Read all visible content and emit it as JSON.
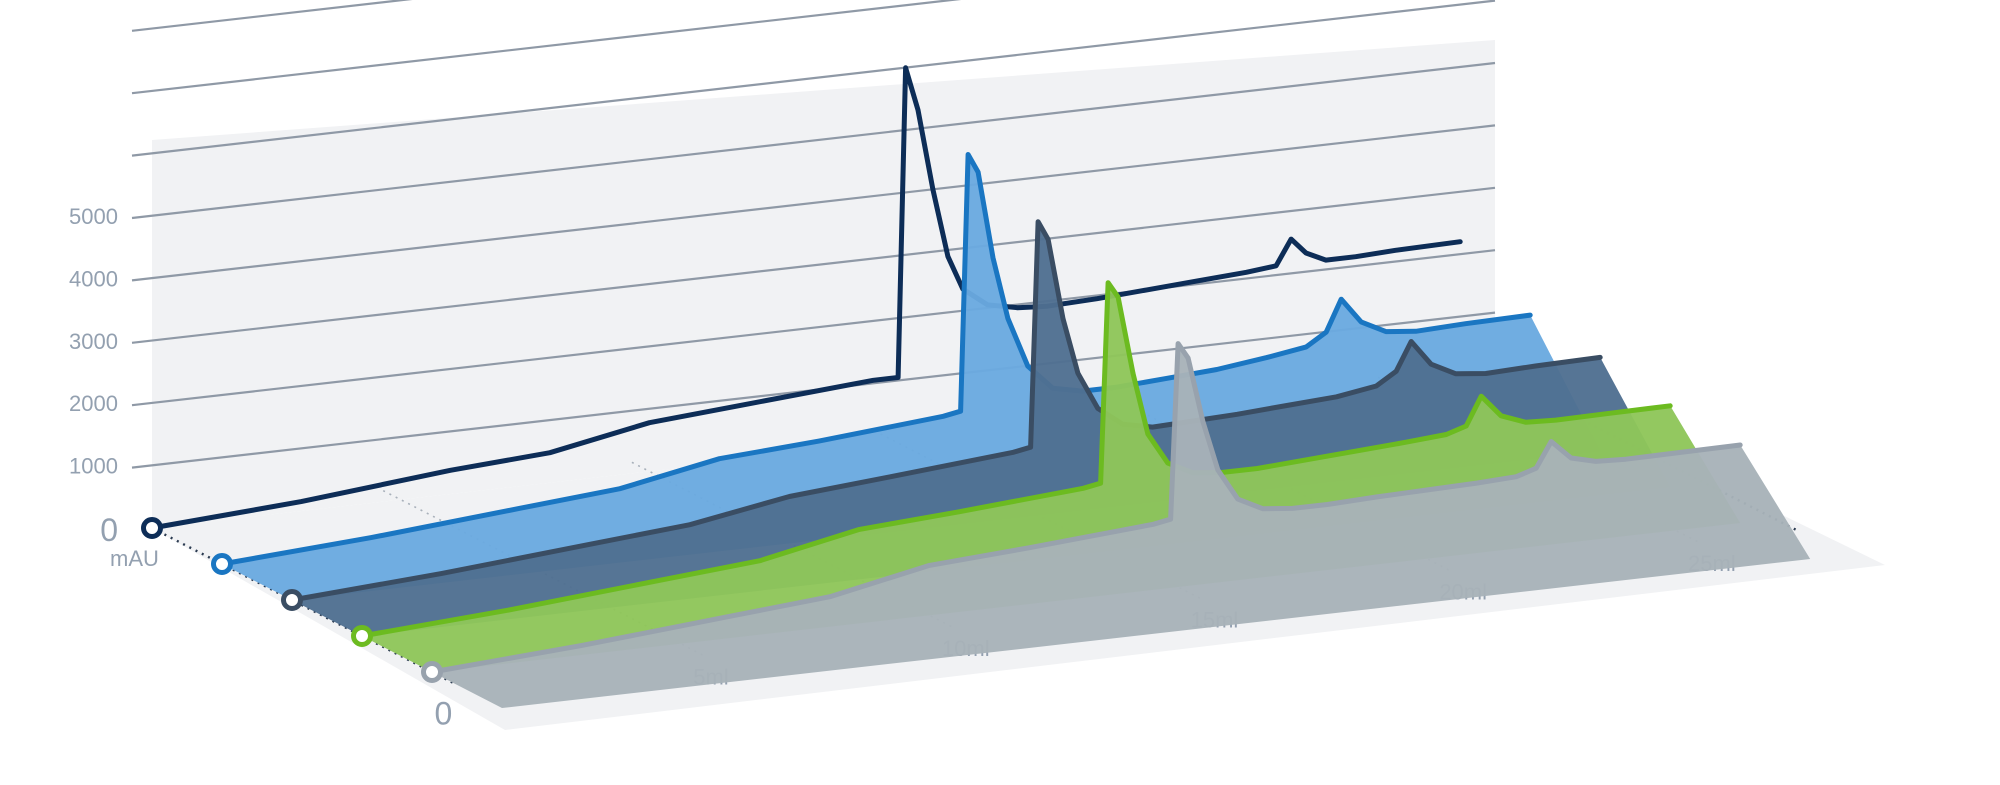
{
  "chart_data": {
    "type": "line",
    "title": "",
    "ylabel": "mAU",
    "xlabel": "",
    "y_ticks": [
      "0",
      "1000",
      "2000",
      "3000",
      "4000",
      "5000"
    ],
    "y_tick_values": [
      0,
      1000,
      2000,
      3000,
      4000,
      5000
    ],
    "ylim": [
      0,
      5000
    ],
    "x_ticks": [
      "0",
      "5ml",
      "10ml",
      "15ml",
      "20ml",
      "25ml"
    ],
    "x_tick_values": [
      0,
      5,
      10,
      15,
      20,
      25
    ],
    "xlim": [
      0,
      27
    ],
    "grid": true,
    "legend": "none",
    "series": [
      {
        "color": "#0d2d57",
        "fill": false,
        "x": [
          0,
          3,
          6,
          8,
          10,
          12,
          14.5,
          15,
          15.15,
          15.4,
          15.7,
          16,
          16.3,
          16.8,
          17.4,
          18,
          19,
          20,
          21,
          22,
          22.6,
          22.9,
          23.2,
          23.6,
          24.2,
          25,
          26.3
        ],
        "y": [
          0,
          150,
          380,
          480,
          780,
          900,
          1050,
          1050,
          6000,
          5300,
          4000,
          2900,
          2350,
          2050,
          1950,
          1920,
          1950,
          2000,
          2050,
          2100,
          2150,
          2550,
          2300,
          2150,
          2150,
          2180,
          2200
        ]
      },
      {
        "color": "#1a76c2",
        "fill": true,
        "fill_color": "#6aaae0",
        "x": [
          0,
          3,
          6,
          8,
          10,
          12,
          14.5,
          14.85,
          15,
          15.2,
          15.5,
          15.8,
          16.2,
          16.7,
          17.3,
          18,
          19,
          20,
          21,
          21.8,
          22.2,
          22.5,
          22.9,
          23.4,
          24,
          25,
          26.3
        ],
        "y": [
          0,
          150,
          350,
          480,
          780,
          880,
          1050,
          1100,
          5200,
          4900,
          3500,
          2500,
          1700,
          1300,
          1200,
          1200,
          1250,
          1300,
          1400,
          1500,
          1700,
          2200,
          1800,
          1600,
          1550,
          1580,
          1600
        ]
      },
      {
        "color": "#3a4d63",
        "fill": true,
        "fill_color": "#4f6f91",
        "x": [
          0,
          3,
          6,
          8,
          10,
          12,
          14.5,
          14.85,
          15,
          15.2,
          15.5,
          15.8,
          16.2,
          16.7,
          17.3,
          18,
          19,
          20,
          21,
          21.8,
          22.2,
          22.5,
          22.9,
          23.4,
          24,
          25,
          26.3
        ],
        "y": [
          0,
          150,
          350,
          480,
          750,
          880,
          1050,
          1100,
          4700,
          4400,
          3100,
          2200,
          1600,
          1300,
          1200,
          1220,
          1250,
          1300,
          1350,
          1450,
          1650,
          2100,
          1700,
          1500,
          1450,
          1480,
          1500
        ]
      },
      {
        "color": "#6cbb20",
        "fill": true,
        "fill_color": "#8fc65a",
        "x": [
          0,
          3,
          6,
          8,
          10,
          12,
          14.5,
          14.85,
          15,
          15.2,
          15.5,
          15.8,
          16.2,
          16.7,
          17.3,
          18,
          19,
          20,
          21,
          21.8,
          22.2,
          22.5,
          22.9,
          23.4,
          24,
          25,
          26.3
        ],
        "y": [
          0,
          150,
          350,
          480,
          800,
          900,
          1050,
          1100,
          4300,
          4050,
          2800,
          1800,
          1300,
          1100,
          1050,
          1050,
          1100,
          1150,
          1200,
          1250,
          1350,
          1800,
          1450,
          1300,
          1280,
          1290,
          1300
        ]
      },
      {
        "color": "#98a2ad",
        "fill": true,
        "fill_color": "#a8b2b8",
        "x": [
          0,
          3,
          6,
          8,
          10,
          12,
          14.5,
          14.85,
          15,
          15.2,
          15.5,
          15.8,
          16.2,
          16.7,
          17.3,
          18,
          19,
          20,
          21,
          21.8,
          22.2,
          22.5,
          22.9,
          23.4,
          24,
          25,
          26.3
        ],
        "y": [
          0,
          150,
          350,
          480,
          800,
          900,
          1050,
          1100,
          3900,
          3650,
          2600,
          1800,
          1300,
          1100,
          1050,
          1050,
          1080,
          1100,
          1120,
          1150,
          1250,
          1650,
          1350,
          1250,
          1230,
          1240,
          1250
        ]
      }
    ]
  }
}
